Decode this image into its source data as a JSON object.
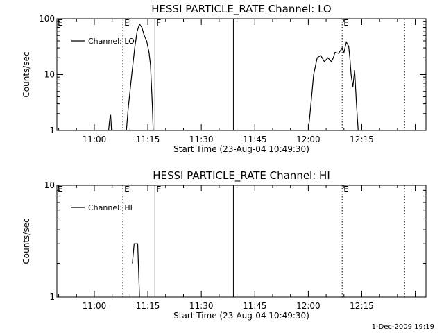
{
  "footer": {
    "stamp": "1-Dec-2009 19:19"
  },
  "chart_data": [
    {
      "type": "line",
      "title": "HESSI PARTICLE_RATE Channel: LO",
      "xlabel": "Start Time (23-Aug-04 10:49:30)",
      "ylabel": "Counts/sec",
      "y_scale": "log",
      "ylim": [
        1,
        100
      ],
      "y_ticks": [
        1,
        10,
        100
      ],
      "y_tick_labels": [
        "1",
        "10",
        "100"
      ],
      "xlim": [
        "10:49:30",
        "12:33:00"
      ],
      "x_ticks": [
        "11:00",
        "11:15",
        "11:30",
        "11:45",
        "12:00",
        "12:15"
      ],
      "grid": false,
      "legend": {
        "placement": "top-left",
        "entries": [
          "Channel: LO"
        ]
      },
      "series": [
        {
          "name": "Channel: LO",
          "segments": [
            [
              [
                "11:04:00",
                1.0
              ],
              [
                "11:04:20",
                1.6
              ],
              [
                "11:04:35",
                1.9
              ],
              [
                "11:04:50",
                1.0
              ]
            ],
            [
              [
                "11:09:00",
                1.0
              ],
              [
                "11:09:30",
                2.5
              ],
              [
                "11:10:30",
                10
              ],
              [
                "11:11:20",
                30
              ],
              [
                "11:12:00",
                60
              ],
              [
                "11:12:40",
                80
              ],
              [
                "11:13:20",
                70
              ],
              [
                "11:14:00",
                50
              ],
              [
                "11:14:40",
                40
              ],
              [
                "11:15:20",
                25
              ],
              [
                "11:15:45",
                15
              ],
              [
                "11:16:15",
                3
              ],
              [
                "11:16:30",
                1.0
              ]
            ],
            [
              [
                "12:00:00",
                1.0
              ],
              [
                "12:00:30",
                2.0
              ],
              [
                "12:01:30",
                10
              ],
              [
                "12:02:30",
                20
              ],
              [
                "12:03:30",
                22
              ],
              [
                "12:04:30",
                17
              ],
              [
                "12:05:30",
                20
              ],
              [
                "12:06:30",
                17
              ],
              [
                "12:07:00",
                20
              ],
              [
                "12:07:30",
                25
              ],
              [
                "12:08:30",
                24
              ],
              [
                "12:09:30",
                30
              ],
              [
                "12:10:00",
                25
              ],
              [
                "12:10:40",
                38
              ],
              [
                "12:11:20",
                32
              ],
              [
                "12:11:40",
                20
              ],
              [
                "12:12:00",
                10
              ],
              [
                "12:12:30",
                6
              ],
              [
                "12:13:00",
                12
              ],
              [
                "12:13:30",
                3
              ],
              [
                "12:14:00",
                1.0
              ]
            ]
          ]
        }
      ],
      "markers": [
        {
          "time": "11:08:00",
          "label": "E",
          "style": "dotted"
        },
        {
          "time": "11:17:00",
          "label": "F",
          "style": "solid"
        },
        {
          "time": "11:39:00",
          "label": "",
          "style": "solid"
        },
        {
          "time": "12:09:30",
          "label": "E",
          "style": "dotted"
        },
        {
          "time": "12:27:00",
          "label": "",
          "style": "dotted"
        }
      ],
      "left_flag": "E"
    },
    {
      "type": "line",
      "title": "HESSI PARTICLE_RATE Channel: HI",
      "xlabel": "Start Time (23-Aug-04 10:49:30)",
      "ylabel": "Counts/sec",
      "y_scale": "log",
      "ylim": [
        1,
        10
      ],
      "y_ticks": [
        1,
        10
      ],
      "y_tick_labels": [
        "1",
        "10"
      ],
      "xlim": [
        "10:49:30",
        "12:33:00"
      ],
      "x_ticks": [
        "11:00",
        "11:15",
        "11:30",
        "11:45",
        "12:00",
        "12:15"
      ],
      "grid": false,
      "legend": {
        "placement": "top-left",
        "entries": [
          "Channel: HI"
        ]
      },
      "series": [
        {
          "name": "Channel: HI",
          "segments": [
            [
              [
                "11:10:40",
                2.0
              ],
              [
                "11:11:10",
                3.0
              ],
              [
                "11:12:10",
                3.0
              ],
              [
                "11:12:40",
                1.0
              ]
            ]
          ]
        }
      ],
      "markers": [
        {
          "time": "11:08:00",
          "label": "E",
          "style": "dotted"
        },
        {
          "time": "11:17:00",
          "label": "F",
          "style": "solid"
        },
        {
          "time": "11:39:00",
          "label": "",
          "style": "solid"
        },
        {
          "time": "12:09:30",
          "label": "E",
          "style": "dotted"
        },
        {
          "time": "12:27:00",
          "label": "",
          "style": "dotted"
        }
      ],
      "left_flag": "E"
    }
  ]
}
